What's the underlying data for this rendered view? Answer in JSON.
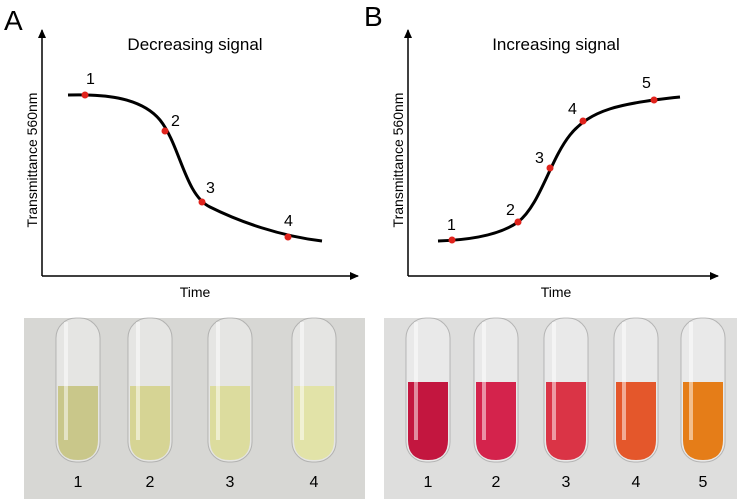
{
  "panels": [
    {
      "letter": "A",
      "title": "Decreasing signal",
      "y_label": "Transmittance 560nm",
      "x_label": "Time",
      "points": [
        "1",
        "2",
        "3",
        "4"
      ],
      "tubes": [
        "1",
        "2",
        "3",
        "4"
      ]
    },
    {
      "letter": "B",
      "title": "Increasing signal",
      "y_label": "Transmittance 560nm",
      "x_label": "Time",
      "points": [
        "1",
        "2",
        "3",
        "4",
        "5"
      ],
      "tubes": [
        "1",
        "2",
        "3",
        "4",
        "5"
      ]
    }
  ]
}
